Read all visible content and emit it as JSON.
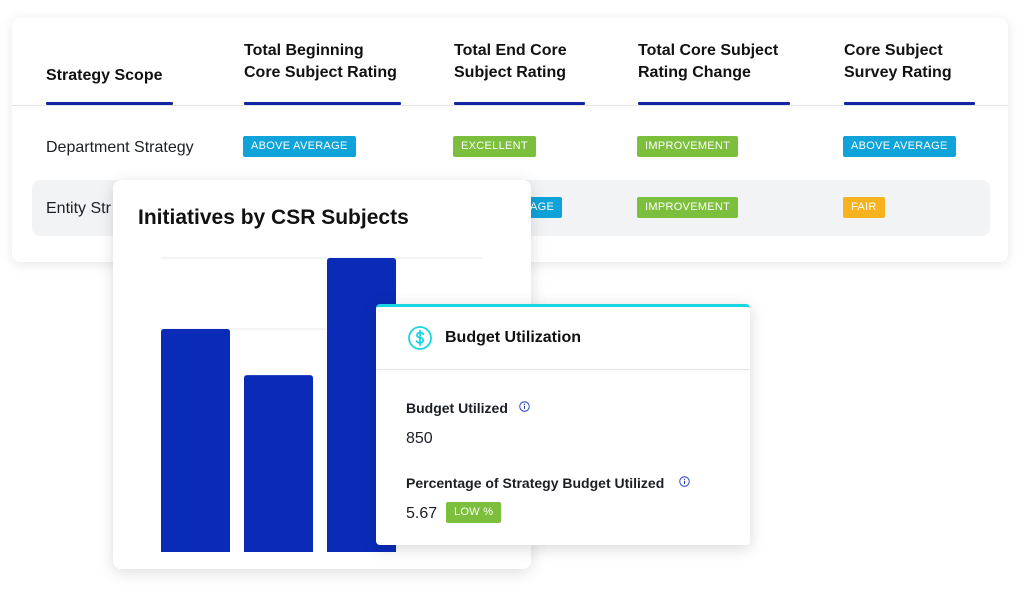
{
  "colors": {
    "accent_navy": "#1126a0",
    "bar_blue": "#0a2bb8",
    "badge_blue": "#0fa3d9",
    "badge_green": "#7cbf3c",
    "badge_orange": "#f7b21d",
    "budget_accent": "#18d6e0"
  },
  "table": {
    "headers": {
      "scope": "Strategy Scope",
      "beginning_line1": "Total Beginning",
      "beginning_line2": "Core Subject Rating",
      "end_line1": "Total End Core",
      "end_line2": "Subject Rating",
      "change_line1": "Total Core Subject",
      "change_line2": "Rating Change",
      "survey_line1": "Core Subject",
      "survey_line2": "Survey Rating"
    },
    "rows": [
      {
        "scope": "Department Strategy",
        "beginning": "ABOVE AVERAGE",
        "end": "EXCELLENT",
        "change": "IMPROVEMENT",
        "survey": "ABOVE AVERAGE"
      },
      {
        "scope": "Entity Str",
        "end": "AGE",
        "change": "IMPROVEMENT",
        "survey": "FAIR"
      }
    ]
  },
  "chart_card": {
    "title": "Initiatives by CSR Subjects"
  },
  "chart_data": {
    "type": "bar",
    "title": "Initiatives by CSR Subjects",
    "categories": [
      "",
      "",
      ""
    ],
    "values": [
      3,
      2.35,
      4
    ],
    "ylim": [
      0,
      4
    ],
    "grid": true,
    "legend": "none"
  },
  "budget": {
    "title": "Budget Utilization",
    "icon": "dollar-circle-icon",
    "utilized_label": "Budget Utilized",
    "utilized_value": "850",
    "percentage_label": "Percentage of Strategy Budget Utilized",
    "percentage_value": "5.67",
    "percentage_badge": "LOW %"
  }
}
